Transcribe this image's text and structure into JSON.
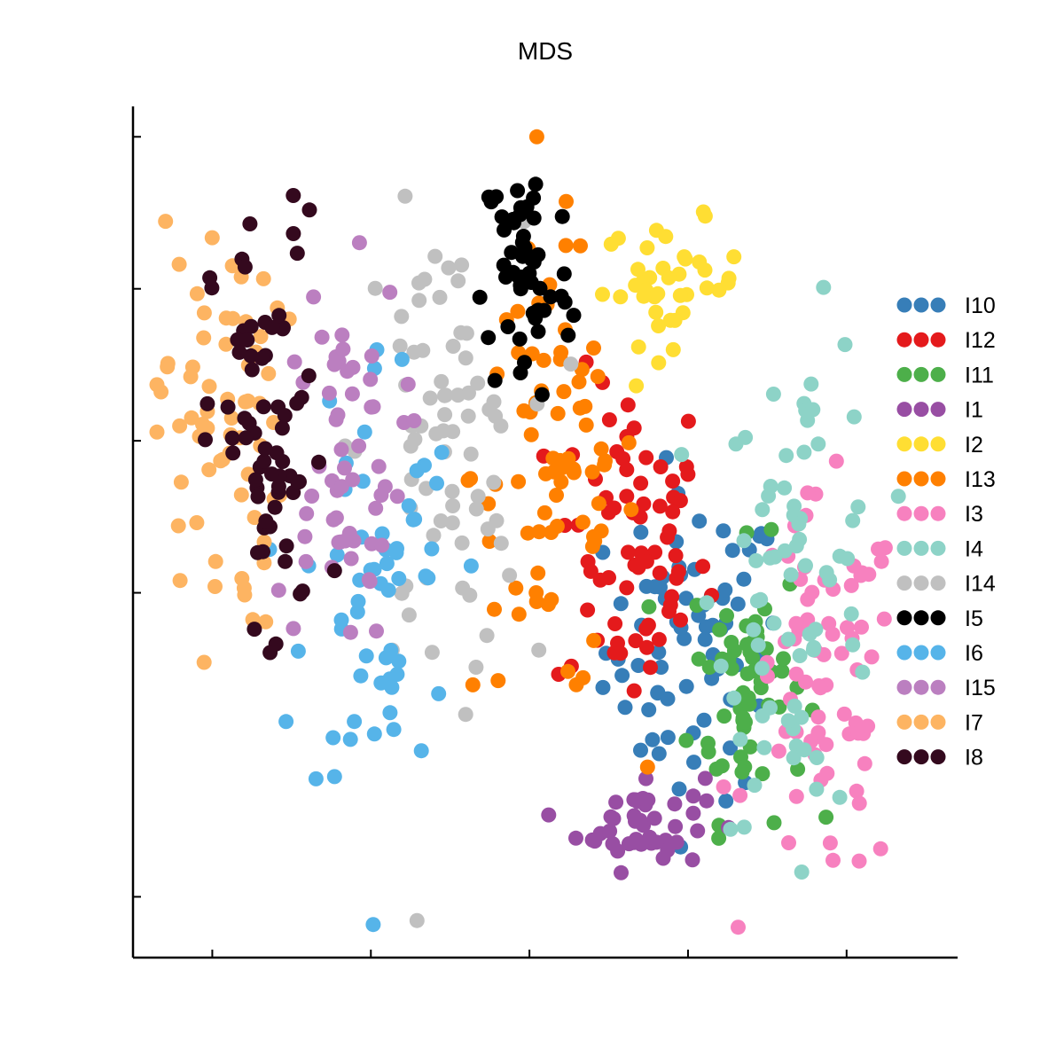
{
  "chart_data": {
    "type": "scatter",
    "title": "MDS",
    "xlabel": "",
    "ylabel": "",
    "xlim": [
      -1.25,
      1.35
    ],
    "ylim": [
      -1.2,
      1.6
    ],
    "grid": false,
    "legend_position": "right",
    "tick_labels_shown": false,
    "series": [
      {
        "name": "I10",
        "color": "#377eb8",
        "center": [
          0.52,
          -0.18
        ],
        "spread": [
          0.14,
          0.25
        ],
        "count": 75
      },
      {
        "name": "I12",
        "color": "#e41a1c",
        "center": [
          0.32,
          0.15
        ],
        "spread": [
          0.12,
          0.28
        ],
        "count": 70
      },
      {
        "name": "I11",
        "color": "#4daf4a",
        "center": [
          0.69,
          -0.3
        ],
        "spread": [
          0.09,
          0.22
        ],
        "count": 60
      },
      {
        "name": "I1",
        "color": "#984ea3",
        "center": [
          0.35,
          -0.75
        ],
        "spread": [
          0.1,
          0.08
        ],
        "count": 45
      },
      {
        "name": "I2",
        "color": "#ffde33",
        "center": [
          0.45,
          1.02
        ],
        "spread": [
          0.11,
          0.1
        ],
        "count": 40
      },
      {
        "name": "I13",
        "color": "#ff8000",
        "center": [
          0.08,
          0.4
        ],
        "spread": [
          0.13,
          0.38
        ],
        "count": 80
      },
      {
        "name": "I3",
        "color": "#f781bf",
        "center": [
          0.93,
          -0.35
        ],
        "spread": [
          0.12,
          0.32
        ],
        "count": 75
      },
      {
        "name": "I4",
        "color": "#8dd3c7",
        "center": [
          0.85,
          0.05
        ],
        "spread": [
          0.13,
          0.4
        ],
        "count": 75
      },
      {
        "name": "I14",
        "color": "#c0c0c0",
        "center": [
          -0.28,
          0.45
        ],
        "spread": [
          0.13,
          0.38
        ],
        "count": 75
      },
      {
        "name": "I5",
        "color": "#000000",
        "center": [
          -0.01,
          1.05
        ],
        "spread": [
          0.07,
          0.22
        ],
        "count": 55
      },
      {
        "name": "I6",
        "color": "#56b4e9",
        "center": [
          -0.47,
          0.05
        ],
        "spread": [
          0.12,
          0.4
        ],
        "count": 60
      },
      {
        "name": "I15",
        "color": "#bb7fc0",
        "center": [
          -0.6,
          0.45
        ],
        "spread": [
          0.1,
          0.3
        ],
        "count": 60
      },
      {
        "name": "I7",
        "color": "#fdb462",
        "center": [
          -0.98,
          0.55
        ],
        "spread": [
          0.1,
          0.35
        ],
        "count": 65
      },
      {
        "name": "I8",
        "color": "#34091e",
        "center": [
          -0.82,
          0.45
        ],
        "spread": [
          0.09,
          0.4
        ],
        "count": 70
      }
    ]
  }
}
